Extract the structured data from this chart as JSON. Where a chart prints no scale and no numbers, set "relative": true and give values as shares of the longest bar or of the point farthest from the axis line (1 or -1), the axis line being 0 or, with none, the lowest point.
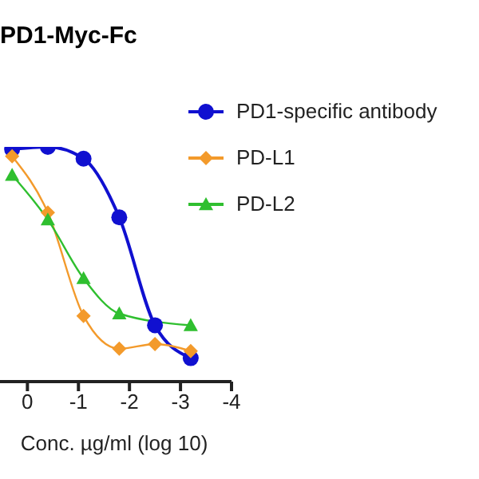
{
  "chart_data": {
    "type": "line",
    "title": "PD1-Myc-Fc",
    "xlabel": "Conc. µg/ml (log 10)",
    "relative": true,
    "xlim": [
      0.6,
      -4
    ],
    "xticks": [
      0,
      -1,
      -2,
      -3,
      -4
    ],
    "legend": "right",
    "series": [
      {
        "name": "PD1-specific antibody",
        "color": "#1010d0",
        "marker": "circle",
        "x": [
          0.3,
          -0.4,
          -1.1,
          -1.8,
          -2.5,
          -3.2
        ],
        "values": [
          0.99,
          1,
          0.95,
          0.7,
          0.24,
          0.1
        ]
      },
      {
        "name": "PD-L1",
        "color": "#f39a2b",
        "marker": "diamond",
        "x": [
          0.3,
          -0.4,
          -1.1,
          -1.8,
          -2.5,
          -3.2
        ],
        "values": [
          0.96,
          0.72,
          0.28,
          0.14,
          0.16,
          0.13
        ]
      },
      {
        "name": "PD-L2",
        "color": "#2fbf2f",
        "marker": "triangle",
        "x": [
          0.3,
          -0.4,
          -1.1,
          -1.8,
          -3.2
        ],
        "values": [
          0.88,
          0.69,
          0.44,
          0.29,
          0.24
        ]
      }
    ]
  }
}
